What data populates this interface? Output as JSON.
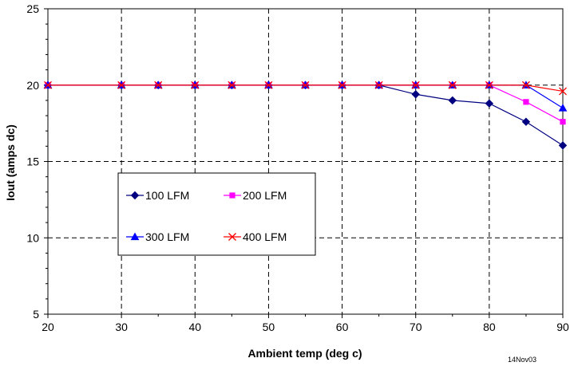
{
  "chart_data": {
    "type": "line",
    "title": "",
    "xlabel": "Ambient temp (deg c)",
    "ylabel": "Iout (amps dc)",
    "xlim": [
      20,
      90
    ],
    "ylim": [
      5,
      25
    ],
    "x_ticks": [
      20,
      30,
      40,
      50,
      60,
      70,
      80,
      90
    ],
    "x_minor_ticks": [
      35,
      45,
      55,
      65,
      75,
      85
    ],
    "y_ticks": [
      5,
      10,
      15,
      20,
      25
    ],
    "grid": true,
    "legend_position": "center-left",
    "date_stamp": "14Nov03",
    "series": [
      {
        "name": "100 LFM",
        "color": "#000080",
        "marker": "diamond",
        "x": [
          20,
          30,
          35,
          40,
          45,
          50,
          55,
          60,
          65,
          70,
          75,
          80,
          85,
          90
        ],
        "y": [
          20,
          20,
          20,
          20,
          20,
          20,
          20,
          20,
          20,
          19.4,
          19.0,
          18.8,
          17.6,
          16.05
        ]
      },
      {
        "name": "200 LFM",
        "color": "#ff00ff",
        "marker": "square",
        "x": [
          20,
          30,
          35,
          40,
          45,
          50,
          55,
          60,
          65,
          70,
          75,
          80,
          85,
          90
        ],
        "y": [
          20,
          20,
          20,
          20,
          20,
          20,
          20,
          20,
          20,
          20,
          20,
          20,
          18.9,
          17.6
        ]
      },
      {
        "name": "300 LFM",
        "color": "#0000ff",
        "marker": "triangle",
        "x": [
          20,
          30,
          35,
          40,
          45,
          50,
          55,
          60,
          65,
          70,
          75,
          80,
          85,
          90
        ],
        "y": [
          20,
          20,
          20,
          20,
          20,
          20,
          20,
          20,
          20,
          20,
          20,
          20,
          20,
          18.5
        ]
      },
      {
        "name": "400 LFM",
        "color": "#ff0000",
        "marker": "x",
        "x": [
          20,
          30,
          35,
          40,
          45,
          50,
          55,
          60,
          65,
          70,
          75,
          80,
          85,
          90
        ],
        "y": [
          20,
          20,
          20,
          20,
          20,
          20,
          20,
          20,
          20,
          20,
          20,
          20,
          20,
          19.6
        ]
      }
    ]
  }
}
